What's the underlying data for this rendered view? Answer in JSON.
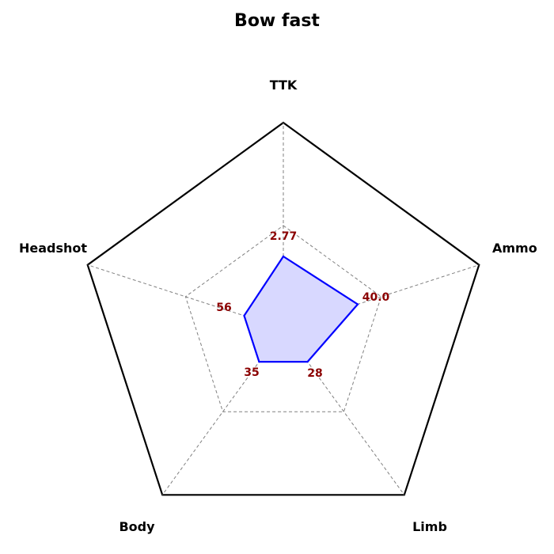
{
  "chart_data": {
    "type": "radar",
    "title": "Bow fast",
    "axes": [
      "TTK",
      "Ammo",
      "Limb",
      "Body",
      "Headshot"
    ],
    "series": [
      {
        "values": [
          0.35,
          0.38,
          0.2,
          0.2,
          0.2
        ],
        "display_labels": [
          "2.77",
          "40.0",
          "28",
          "35",
          "56"
        ]
      }
    ],
    "range": [
      0,
      1
    ],
    "grid_levels": [
      0.5
    ],
    "colors": {
      "outline": "#000000",
      "grid": "#808080",
      "series_line": "#0000ff",
      "series_fill": "#d8d8ff",
      "value_text": "#8b0000"
    }
  }
}
